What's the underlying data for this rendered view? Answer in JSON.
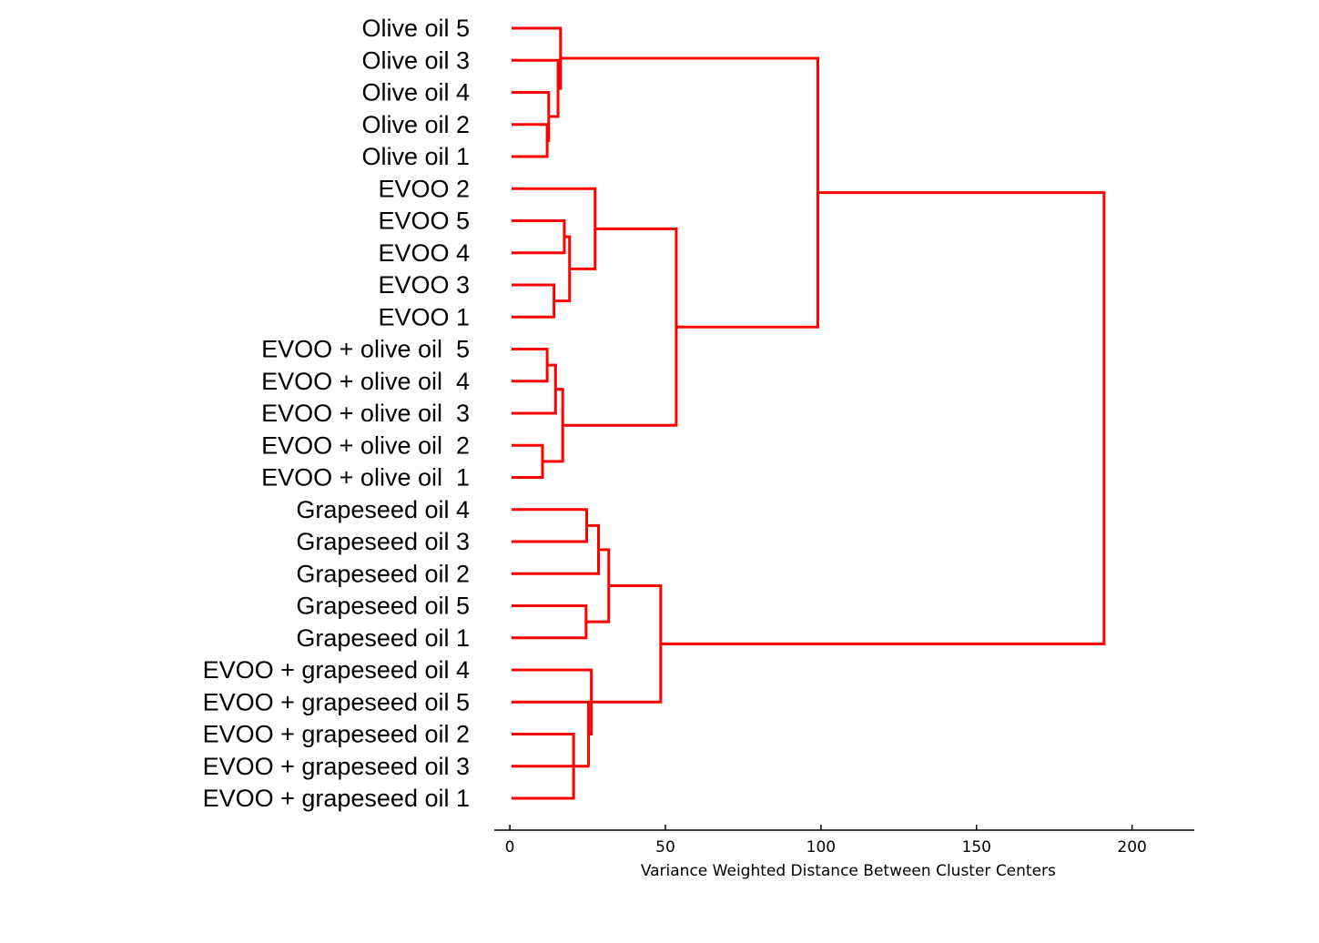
{
  "chart_data": {
    "type": "dendrogram",
    "orientation": "horizontal",
    "xlabel": "Variance Weighted Distance Between Cluster Centers",
    "xlim": [
      -5,
      220
    ],
    "xticks": [
      0,
      50,
      100,
      150,
      200
    ],
    "xtick_labels": [
      "0",
      "50",
      "100",
      "150",
      "200"
    ],
    "grid": false,
    "branch_color": "#ff0000",
    "leaves": [
      {
        "label": "Olive oil 5"
      },
      {
        "label": "Olive oil 3"
      },
      {
        "label": "Olive oil 4"
      },
      {
        "label": "Olive oil 2"
      },
      {
        "label": "Olive oil 1"
      },
      {
        "label": "EVOO 2"
      },
      {
        "label": "EVOO 5"
      },
      {
        "label": "EVOO 4"
      },
      {
        "label": "EVOO 3"
      },
      {
        "label": "EVOO 1"
      },
      {
        "label": "EVOO + olive oil  5"
      },
      {
        "label": "EVOO + olive oil  4"
      },
      {
        "label": "EVOO + olive oil  3"
      },
      {
        "label": "EVOO + olive oil  2"
      },
      {
        "label": "EVOO + olive oil  1"
      },
      {
        "label": "Grapeseed oil 4"
      },
      {
        "label": "Grapeseed oil 3"
      },
      {
        "label": "Grapeseed oil 2"
      },
      {
        "label": "Grapeseed oil 5"
      },
      {
        "label": "Grapeseed oil 1"
      },
      {
        "label": "EVOO + grapeseed oil 4"
      },
      {
        "label": "EVOO + grapeseed oil 5"
      },
      {
        "label": "EVOO + grapeseed oil 2"
      },
      {
        "label": "EVOO + grapeseed oil 3"
      },
      {
        "label": "EVOO + grapeseed oil 1"
      }
    ],
    "merges": [
      {
        "id": "m1",
        "a": 3,
        "b": 4,
        "distance": 12
      },
      {
        "id": "m2",
        "a": 2,
        "b": "m1",
        "distance": 12.5
      },
      {
        "id": "m3",
        "a": 1,
        "b": "m2",
        "distance": 15.5
      },
      {
        "id": "m4",
        "a": 0,
        "b": "m3",
        "distance": 16.3
      },
      {
        "id": "m5",
        "a": 6,
        "b": 7,
        "distance": 17.5
      },
      {
        "id": "m6",
        "a": 8,
        "b": 9,
        "distance": 14.2
      },
      {
        "id": "m7",
        "a": "m5",
        "b": "m6",
        "distance": 19.2
      },
      {
        "id": "m8",
        "a": 5,
        "b": "m7",
        "distance": 27.4
      },
      {
        "id": "m9",
        "a": 10,
        "b": 11,
        "distance": 12
      },
      {
        "id": "m10",
        "a": "m9",
        "b": 12,
        "distance": 14.7
      },
      {
        "id": "m11",
        "a": 13,
        "b": 14,
        "distance": 10.5
      },
      {
        "id": "m12",
        "a": "m10",
        "b": "m11",
        "distance": 17
      },
      {
        "id": "m13",
        "a": "m8",
        "b": "m12",
        "distance": 53.5
      },
      {
        "id": "m14",
        "a": "m4",
        "b": "m13",
        "distance": 99
      },
      {
        "id": "m15",
        "a": 15,
        "b": 16,
        "distance": 24.7
      },
      {
        "id": "m16",
        "a": "m15",
        "b": 17,
        "distance": 28.5
      },
      {
        "id": "m17",
        "a": 18,
        "b": 19,
        "distance": 24.5
      },
      {
        "id": "m18",
        "a": "m16",
        "b": "m17",
        "distance": 31.8
      },
      {
        "id": "m19",
        "a": 22,
        "b": 24,
        "distance": 20.5
      },
      {
        "id": "m20",
        "a": 23,
        "b": "m19",
        "distance": 25.5
      },
      {
        "id": "m21",
        "a": 21,
        "b": "m20",
        "distance": 25.3
      },
      {
        "id": "m22",
        "a": 20,
        "b": "m21",
        "distance": 26.2
      },
      {
        "id": "m23",
        "a": "m18",
        "b": "m22",
        "distance": 48.5
      },
      {
        "id": "m24",
        "a": "m14",
        "b": "m23",
        "distance": 191
      }
    ]
  }
}
